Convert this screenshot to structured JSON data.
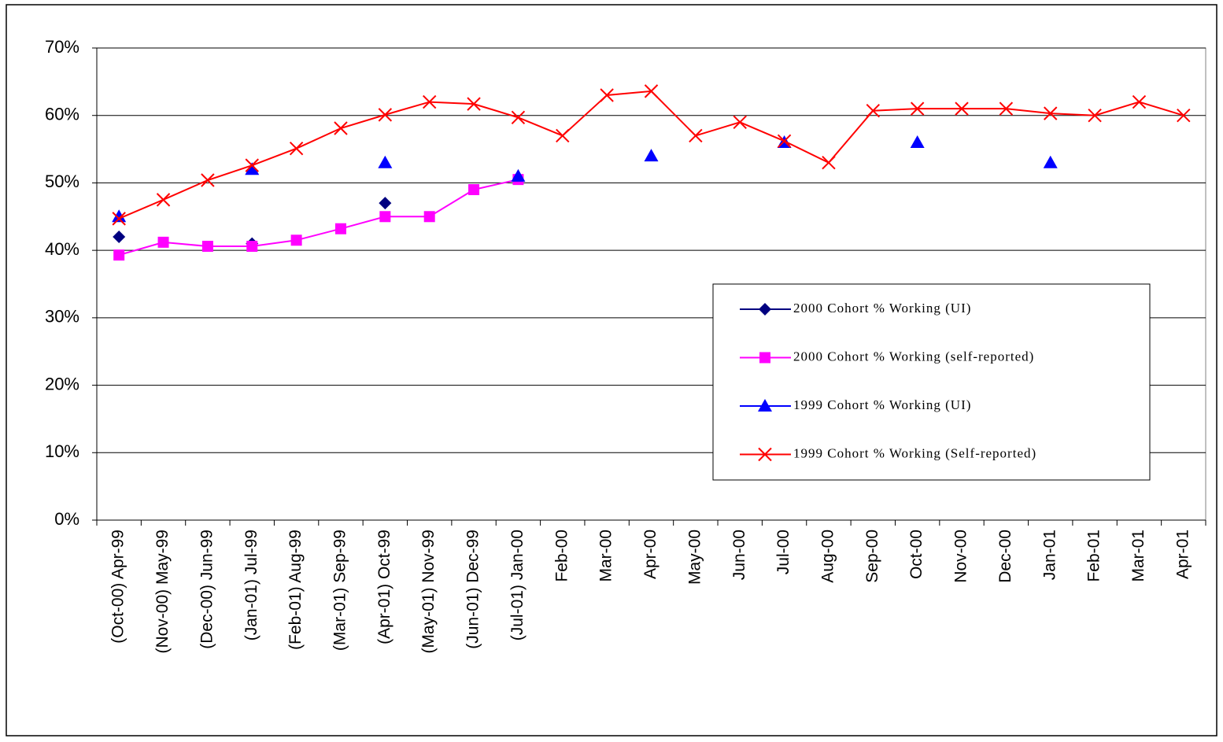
{
  "chart_data": {
    "type": "line",
    "categories": [
      "(Oct-00) Apr-99",
      "(Nov-00) May-99",
      "(Dec-00) Jun-99",
      "(Jan-01) Jul-99",
      "(Feb-01) Aug-99",
      "(Mar-01) Sep-99",
      "(Apr-01) Oct-99",
      "(May-01) Nov-99",
      "(Jun-01) Dec-99",
      "(Jul-01) Jan-00",
      "Feb-00",
      "Mar-00",
      "Apr-00",
      "May-00",
      "Jun-00",
      "Jul-00",
      "Aug-00",
      "Sep-00",
      "Oct-00",
      "Nov-00",
      "Dec-00",
      "Jan-01",
      "Feb-01",
      "Mar-01",
      "Apr-01"
    ],
    "series": [
      {
        "name": "2000 Cohort % Working (UI)",
        "color": "#000080",
        "marker": "diamond",
        "values": [
          42,
          null,
          null,
          41,
          null,
          null,
          47,
          null,
          null,
          null,
          null,
          null,
          null,
          null,
          null,
          null,
          null,
          null,
          null,
          null,
          null,
          null,
          null,
          null,
          null
        ]
      },
      {
        "name": "2000 Cohort % Working (self-reported)",
        "color": "#ff00ff",
        "marker": "square",
        "values": [
          39.3,
          41.2,
          40.6,
          40.6,
          41.5,
          43.2,
          45,
          45,
          49,
          50.5,
          null,
          null,
          null,
          null,
          null,
          null,
          null,
          null,
          null,
          null,
          null,
          null,
          null,
          null,
          null
        ]
      },
      {
        "name": "1999 Cohort % Working (UI)",
        "color": "#0000ff",
        "marker": "triangle",
        "values": [
          45,
          null,
          null,
          52,
          null,
          null,
          53,
          null,
          null,
          51,
          null,
          null,
          54,
          null,
          null,
          56,
          null,
          null,
          56,
          null,
          null,
          53,
          null,
          null,
          null
        ]
      },
      {
        "name": "1999 Cohort % Working (Self-reported)",
        "color": "#ff0000",
        "marker": "x",
        "values": [
          44.7,
          47.5,
          50.4,
          52.6,
          55.1,
          58.1,
          60.1,
          62,
          61.7,
          59.7,
          57,
          63,
          63.6,
          57,
          59,
          56.2,
          53,
          60.7,
          61,
          61,
          61,
          60.3,
          60,
          62,
          60
        ]
      }
    ],
    "ylim": [
      0,
      70
    ],
    "yticks": [
      {
        "value": 0,
        "label": "0%"
      },
      {
        "value": 10,
        "label": "10%"
      },
      {
        "value": 20,
        "label": "20%"
      },
      {
        "value": 30,
        "label": "30%"
      },
      {
        "value": 40,
        "label": "40%"
      },
      {
        "value": 50,
        "label": "50%"
      },
      {
        "value": 60,
        "label": "60%"
      },
      {
        "value": 70,
        "label": "70%"
      }
    ],
    "grid": true,
    "legend": "right"
  }
}
